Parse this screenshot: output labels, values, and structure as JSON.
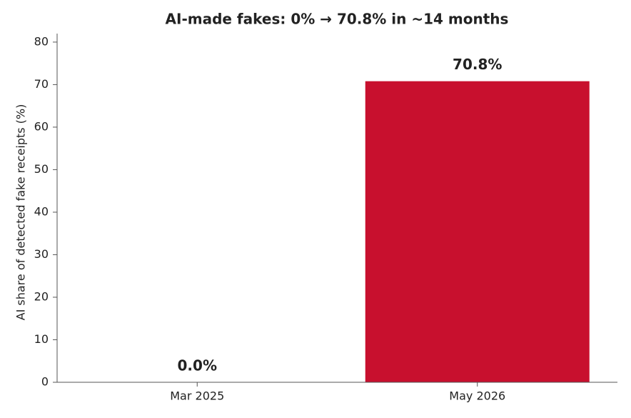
{
  "chart_data": {
    "type": "bar",
    "title": "AI-made fakes: 0% → 70.8% in ~14 months",
    "ylabel": "AI share of detected fake receipts (%)",
    "categories": [
      "Mar 2025",
      "May 2026"
    ],
    "values": [
      0,
      70.8
    ],
    "value_labels": [
      "0.0%",
      "70.8%"
    ],
    "color": "#c8102e",
    "ylim": [
      0,
      82
    ],
    "yticks": [
      0,
      10,
      20,
      30,
      40,
      50,
      60,
      70,
      80
    ],
    "grid": false
  }
}
